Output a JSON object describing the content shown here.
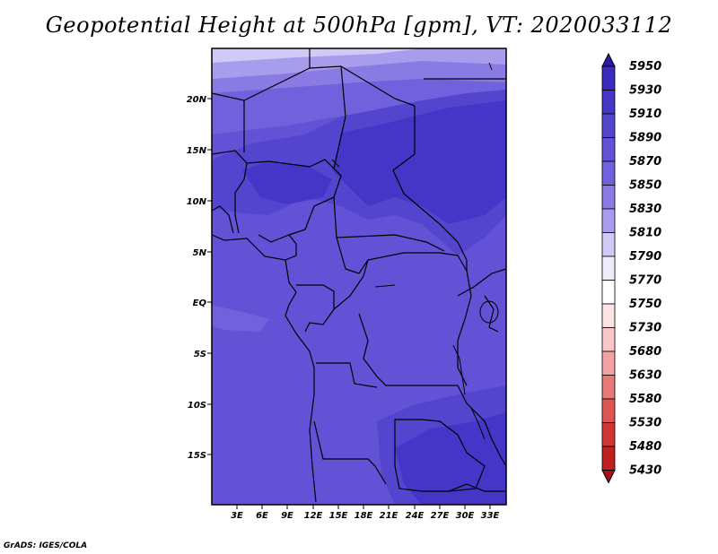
{
  "title": "Geopotential Height at 500hPa [gpm], VT: 2020033112",
  "credit": "GrADS: IGES/COLA",
  "map": {
    "lat_labels": [
      "20N",
      "15N",
      "10N",
      "5N",
      "EQ",
      "5S",
      "10S",
      "15S"
    ],
    "lon_labels": [
      "3E",
      "6E",
      "9E",
      "12E",
      "15E",
      "18E",
      "21E",
      "24E",
      "27E",
      "30E",
      "33E"
    ]
  },
  "colorbar": {
    "levels": [
      "5950",
      "5930",
      "5910",
      "5890",
      "5870",
      "5850",
      "5830",
      "5810",
      "5790",
      "5770",
      "5750",
      "5730",
      "5680",
      "5630",
      "5580",
      "5530",
      "5480",
      "5430"
    ],
    "colors": [
      "#2b1aa6",
      "#3a2bbd",
      "#4636c8",
      "#5445cf",
      "#6352d6",
      "#7261dc",
      "#8a7be4",
      "#a89ded",
      "#cfcaf6",
      "#efedfc",
      "#ffffff",
      "#fde4e4",
      "#f9c7c7",
      "#f2a2a2",
      "#e97a7a",
      "#de5555",
      "#d03535",
      "#bf2020",
      "#a51212"
    ]
  },
  "icons": {
    "axis": "lat-lon-axes-icon",
    "boundaries": "country-borders-icon"
  }
}
